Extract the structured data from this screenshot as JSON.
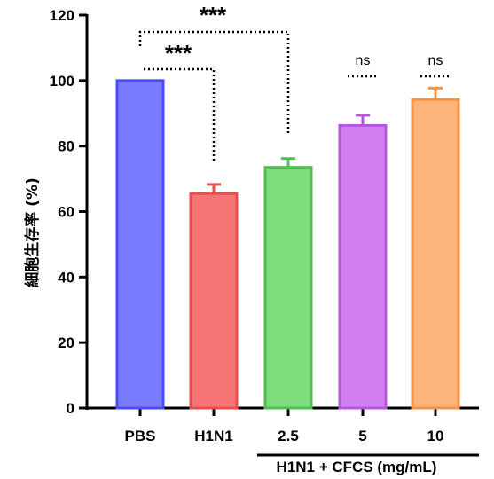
{
  "chart_data": {
    "type": "bar",
    "categories": [
      "PBS",
      "H1N1",
      "2.5",
      "5",
      "10"
    ],
    "values": [
      100,
      65.5,
      73.5,
      86.3,
      94.2
    ],
    "errors": [
      0,
      2.8,
      2.7,
      3.1,
      3.5
    ],
    "bar_colors": [
      "#7b7bff",
      "#f87575",
      "#7ddd7d",
      "#d27ff2",
      "#fdb47b"
    ],
    "bar_edge_colors": [
      "#4c4cef",
      "#ea4d4d",
      "#4dc04d",
      "#b555e0",
      "#f59447"
    ],
    "ylabel": "細胞生存率 (%)",
    "group_label": "H1N1 + CFCS (mg/mL)",
    "ylim": [
      0,
      120
    ],
    "yticks": [
      0,
      20,
      40,
      60,
      80,
      100,
      120
    ],
    "significance": [
      {
        "from": 0,
        "to": 1,
        "label": "***"
      },
      {
        "from": 0,
        "to": 2,
        "label": "***"
      },
      {
        "from": 3,
        "to": 3,
        "label": "ns"
      },
      {
        "from": 4,
        "to": 4,
        "label": "ns"
      }
    ]
  }
}
